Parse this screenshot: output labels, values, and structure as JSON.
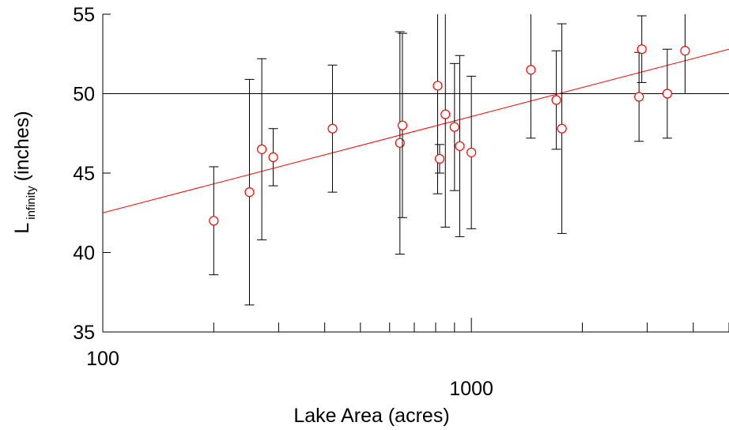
{
  "chart_data": {
    "type": "scatter",
    "xlabel": "Lake Area (acres)",
    "ylabel": "L",
    "ylabel_sub": "infinity",
    "ylabel_unit": "(inches)",
    "x_scale": "log",
    "xlim": [
      100,
      5000
    ],
    "ylim": [
      35,
      55
    ],
    "x_ticks": [
      100,
      1000
    ],
    "x_tick_labels": [
      "100",
      "1000"
    ],
    "y_ticks": [
      35,
      40,
      45,
      50,
      55
    ],
    "y_tick_labels": [
      "35",
      "40",
      "45",
      "50",
      "55"
    ],
    "reference_line_y": 50,
    "grid": false,
    "legend": "none",
    "colors": {
      "points": "#ff0000",
      "fit_line": "#ff0000",
      "error_bars": "#000000",
      "axes": "#000000"
    },
    "points": [
      {
        "x": 200,
        "y": 42.0,
        "y_low": 38.6,
        "y_high": 45.4
      },
      {
        "x": 250,
        "y": 43.8,
        "y_low": 36.7,
        "y_high": 50.9
      },
      {
        "x": 270,
        "y": 46.5,
        "y_low": 40.8,
        "y_high": 52.2
      },
      {
        "x": 290,
        "y": 46.0,
        "y_low": 44.2,
        "y_high": 47.8
      },
      {
        "x": 420,
        "y": 47.8,
        "y_low": 43.8,
        "y_high": 51.8
      },
      {
        "x": 640,
        "y": 46.9,
        "y_low": 39.9,
        "y_high": 53.9
      },
      {
        "x": 650,
        "y": 48.0,
        "y_low": 42.2,
        "y_high": 53.8
      },
      {
        "x": 810,
        "y": 50.5,
        "y_low": 43.7,
        "y_high": 57.3
      },
      {
        "x": 820,
        "y": 45.9,
        "y_low": 45.0,
        "y_high": 46.8
      },
      {
        "x": 850,
        "y": 48.7,
        "y_low": 41.6,
        "y_high": 55.8
      },
      {
        "x": 900,
        "y": 47.9,
        "y_low": 43.9,
        "y_high": 51.9
      },
      {
        "x": 930,
        "y": 46.7,
        "y_low": 41.0,
        "y_high": 52.4
      },
      {
        "x": 1000,
        "y": 46.3,
        "y_low": 41.5,
        "y_high": 51.1
      },
      {
        "x": 1450,
        "y": 51.5,
        "y_low": 47.2,
        "y_high": 55.8
      },
      {
        "x": 1700,
        "y": 49.6,
        "y_low": 46.5,
        "y_high": 52.7
      },
      {
        "x": 1760,
        "y": 47.8,
        "y_low": 41.2,
        "y_high": 54.4
      },
      {
        "x": 2850,
        "y": 49.8,
        "y_low": 47.0,
        "y_high": 52.6
      },
      {
        "x": 2900,
        "y": 52.8,
        "y_low": 50.7,
        "y_high": 54.9
      },
      {
        "x": 3400,
        "y": 50.0,
        "y_low": 47.2,
        "y_high": 52.8
      },
      {
        "x": 3800,
        "y": 52.7,
        "y_low": 50.0,
        "y_high": 55.4
      }
    ],
    "fit_line": {
      "x": [
        100,
        5000
      ],
      "y": [
        42.5,
        52.8
      ]
    }
  }
}
